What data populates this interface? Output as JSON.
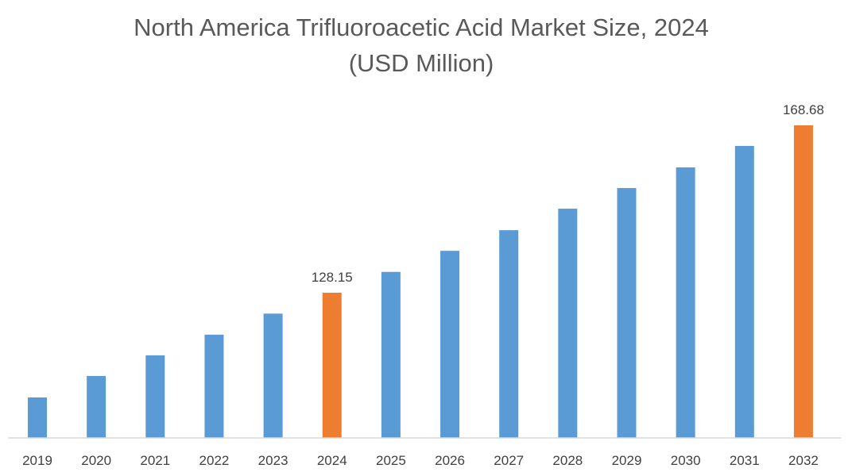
{
  "chart_data": {
    "type": "bar",
    "title_line1": "North America Trifluoroacetic Acid Market Size, 2024",
    "title_line2": "(USD Million)",
    "xlabel": "",
    "ylabel": "",
    "categories": [
      "2019",
      "2020",
      "2021",
      "2022",
      "2023",
      "2024",
      "2025",
      "2026",
      "2027",
      "2028",
      "2029",
      "2030",
      "2031",
      "2032"
    ],
    "values": [
      102.8,
      108.0,
      113.0,
      118.0,
      123.1,
      128.15,
      133.2,
      138.3,
      143.3,
      148.5,
      153.5,
      158.5,
      163.7,
      168.68
    ],
    "data_labels": {
      "5": "128.15",
      "13": "168.68"
    },
    "highlight_indices": [
      5,
      13
    ],
    "colors": {
      "default": "#5b9bd5",
      "highlight": "#ed7d31",
      "axis": "#d9d9d9"
    },
    "y_axis_visible": false,
    "grid": false,
    "legend": "none"
  }
}
